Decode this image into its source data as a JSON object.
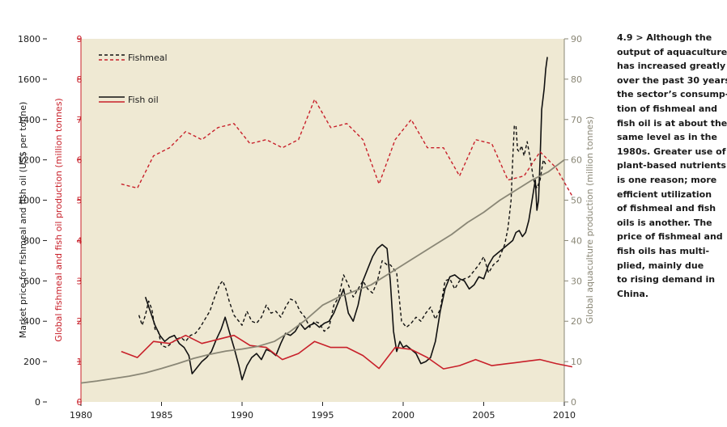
{
  "colors": {
    "plot_background": "#efe9d3",
    "fishmeal": "#111111",
    "fish_oil": "#111111",
    "production": "#c8202a",
    "aquaculture": "#8a8776",
    "left_axis_text": "#1a1a1a",
    "middle_axis_text": "#c8202a",
    "right_axis_text": "#8a8776"
  },
  "caption_lines": [
    "4.9 > Although the",
    "output of aquaculture",
    "has increased greatly",
    "over the past 30 years,",
    "the sector’s consump-",
    "tion of fishmeal and",
    "fish oil is at about the",
    "same level as in the",
    "1980s. Greater use of",
    "plant-based nutrients",
    "is one reason; more",
    "efficient utilization",
    "of fishmeal and fish",
    "oils is another. The",
    "price of fishmeal and",
    "fish oils has multi-",
    "plied, mainly due",
    "to rising demand in",
    "China."
  ],
  "chart_data": {
    "type": "line",
    "title": "",
    "xlabel": "",
    "xlim": [
      1980,
      2010
    ],
    "x_ticks": [
      1980,
      1985,
      1990,
      1995,
      2000,
      2005,
      2010
    ],
    "x_tick_labels": [
      "1980",
      "1985",
      "1990",
      "1995",
      "2000",
      "2005",
      "2010"
    ],
    "y_axes": {
      "price": {
        "label": "Market price for fishmeal and fish oil (US$ per tonne)",
        "range": [
          0,
          1800
        ],
        "ticks": [
          0,
          200,
          400,
          600,
          800,
          1000,
          1200,
          1400,
          1600,
          1800
        ],
        "tick_labels": [
          "0",
          "200",
          "400",
          "600",
          "800",
          "1000",
          "1200",
          "1400",
          "1600",
          "1800"
        ]
      },
      "production": {
        "label": "Global fishmeal and fish oil production (million tonnes)",
        "range": [
          0,
          9
        ],
        "ticks": [
          0,
          1,
          2,
          3,
          4,
          5,
          6,
          7,
          8,
          9
        ],
        "tick_labels": [
          "0",
          "1",
          "2",
          "3",
          "4",
          "5",
          "6",
          "7",
          "8",
          "9"
        ]
      },
      "aquaculture": {
        "label": "Global aquaculture production (million tonnes)",
        "range": [
          0,
          90
        ],
        "ticks": [
          0,
          10,
          20,
          30,
          40,
          50,
          60,
          70,
          80,
          90
        ],
        "tick_labels": [
          "0",
          "10",
          "20",
          "30",
          "40",
          "50",
          "60",
          "70",
          "80",
          "90"
        ]
      }
    },
    "legend": {
      "position": "top-left",
      "entries": [
        {
          "label": "Fishmeal",
          "style": "dashed black",
          "series": [
            "fishmeal_price",
            "fishmeal_production"
          ]
        },
        {
          "label": "Fish oil",
          "style": "solid black",
          "series": [
            "fish_oil_price",
            "fish_oil_production"
          ]
        }
      ]
    },
    "series": [
      {
        "name": "Fishmeal price",
        "key": "fishmeal_price",
        "axis": "price",
        "style": "dashed",
        "color": "#111111",
        "x": [
          1983.6,
          1983.8,
          1984.0,
          1984.2,
          1984.4,
          1984.6,
          1984.8,
          1985.0,
          1985.3,
          1985.6,
          1985.9,
          1986.2,
          1986.5,
          1986.8,
          1987.1,
          1987.4,
          1987.7,
          1988.0,
          1988.3,
          1988.6,
          1988.8,
          1989.0,
          1989.2,
          1989.5,
          1989.8,
          1990.0,
          1990.3,
          1990.6,
          1990.9,
          1991.2,
          1991.5,
          1991.8,
          1992.1,
          1992.4,
          1992.7,
          1993.0,
          1993.3,
          1993.6,
          1993.9,
          1994.2,
          1994.5,
          1994.8,
          1995.1,
          1995.4,
          1995.7,
          1996.0,
          1996.3,
          1996.6,
          1996.9,
          1997.2,
          1997.5,
          1997.8,
          1998.1,
          1998.4,
          1998.7,
          1999.0,
          1999.2,
          1999.4,
          1999.6,
          1999.9,
          2000.2,
          2000.5,
          2000.8,
          2001.1,
          2001.4,
          2001.7,
          2002.0,
          2002.3,
          2002.6,
          2002.9,
          2003.2,
          2003.5,
          2003.8,
          2004.1,
          2004.4,
          2004.7,
          2005.0,
          2005.3,
          2005.6,
          2005.9,
          2006.1,
          2006.3,
          2006.5,
          2006.7,
          2006.8,
          2006.9,
          2007.0,
          2007.1,
          2007.2,
          2007.35,
          2007.5,
          2007.7,
          2007.9,
          2008.1,
          2008.3,
          2008.5,
          2008.7,
          2008.9
        ],
        "values": [
          430,
          380,
          430,
          500,
          460,
          360,
          350,
          280,
          270,
          290,
          310,
          320,
          300,
          330,
          340,
          370,
          410,
          450,
          520,
          580,
          600,
          560,
          500,
          430,
          400,
          380,
          450,
          400,
          390,
          420,
          480,
          440,
          450,
          420,
          470,
          510,
          500,
          450,
          420,
          370,
          400,
          390,
          350,
          370,
          480,
          520,
          630,
          580,
          520,
          560,
          600,
          560,
          540,
          600,
          700,
          680,
          680,
          660,
          640,
          400,
          370,
          390,
          420,
          400,
          440,
          470,
          410,
          460,
          600,
          610,
          560,
          600,
          610,
          620,
          650,
          680,
          720,
          640,
          680,
          700,
          740,
          780,
          860,
          1000,
          1200,
          1370,
          1370,
          1250,
          1240,
          1270,
          1220,
          1290,
          1200,
          1100,
          1060,
          1100,
          1200,
          1170
        ]
      },
      {
        "name": "Fish oil price",
        "key": "fish_oil_price",
        "axis": "price",
        "style": "solid",
        "color": "#111111",
        "x": [
          1984.0,
          1984.3,
          1984.6,
          1984.9,
          1985.2,
          1985.5,
          1985.8,
          1986.1,
          1986.4,
          1986.7,
          1986.9,
          1987.2,
          1987.5,
          1987.8,
          1988.1,
          1988.4,
          1988.7,
          1988.95,
          1989.2,
          1989.5,
          1989.8,
          1990.0,
          1990.3,
          1990.6,
          1990.9,
          1991.2,
          1991.5,
          1991.8,
          1992.1,
          1992.4,
          1992.7,
          1993.0,
          1993.3,
          1993.6,
          1993.9,
          1994.2,
          1994.5,
          1994.8,
          1995.1,
          1995.4,
          1995.7,
          1996.0,
          1996.3,
          1996.6,
          1996.9,
          1997.2,
          1997.5,
          1997.8,
          1998.1,
          1998.4,
          1998.7,
          1999.0,
          1999.2,
          1999.4,
          1999.6,
          1999.8,
          2000.0,
          2000.2,
          2000.5,
          2000.8,
          2001.1,
          2001.4,
          2001.7,
          2002.0,
          2002.3,
          2002.6,
          2002.9,
          2003.2,
          2003.5,
          2003.8,
          2004.1,
          2004.4,
          2004.7,
          2005.0,
          2005.3,
          2005.6,
          2005.9,
          2006.2,
          2006.5,
          2006.8,
          2007.0,
          2007.2,
          2007.4,
          2007.6,
          2007.8,
          2008.0,
          2008.2,
          2008.3,
          2008.4,
          2008.5,
          2008.6,
          2008.75,
          2008.85,
          2008.95
        ],
        "values": [
          520,
          450,
          380,
          330,
          300,
          320,
          330,
          290,
          270,
          230,
          140,
          170,
          200,
          220,
          250,
          310,
          360,
          420,
          350,
          270,
          180,
          110,
          180,
          220,
          240,
          210,
          260,
          250,
          230,
          290,
          340,
          330,
          350,
          390,
          360,
          380,
          390,
          370,
          390,
          400,
          440,
          500,
          560,
          440,
          400,
          480,
          600,
          660,
          720,
          760,
          780,
          760,
          600,
          350,
          250,
          300,
          270,
          280,
          260,
          240,
          190,
          200,
          220,
          300,
          450,
          560,
          620,
          630,
          610,
          600,
          560,
          580,
          620,
          610,
          680,
          720,
          740,
          760,
          780,
          800,
          840,
          850,
          820,
          840,
          900,
          1000,
          1100,
          950,
          1000,
          1200,
          1450,
          1550,
          1650,
          1710
        ]
      },
      {
        "name": "Fishmeal production",
        "key": "fishmeal_production",
        "axis": "production",
        "style": "dashed",
        "color": "#c8202a",
        "x": [
          1982.5,
          1983.5,
          1984.5,
          1985.5,
          1986.5,
          1987.5,
          1988.5,
          1989.5,
          1990.5,
          1991.5,
          1992.5,
          1993.5,
          1994.5,
          1995.5,
          1996.5,
          1997.5,
          1998.5,
          1999.5,
          2000.5,
          2001.5,
          2002.5,
          2003.5,
          2004.5,
          2005.5,
          2006.5,
          2007.5,
          2008.5,
          2009.5,
          2010.5
        ],
        "values": [
          5.4,
          5.3,
          6.1,
          6.3,
          6.7,
          6.5,
          6.8,
          6.9,
          6.4,
          6.5,
          6.3,
          6.5,
          7.5,
          6.8,
          6.9,
          6.5,
          5.4,
          6.5,
          7.0,
          6.3,
          6.3,
          5.6,
          6.5,
          6.4,
          5.5,
          5.6,
          6.2,
          5.8,
          5.1
        ]
      },
      {
        "name": "Fish oil production",
        "key": "fish_oil_production",
        "axis": "production",
        "style": "solid",
        "color": "#c8202a",
        "x": [
          1982.5,
          1983.5,
          1984.5,
          1985.5,
          1986.5,
          1987.5,
          1988.5,
          1989.5,
          1990.5,
          1991.5,
          1992.5,
          1993.5,
          1994.5,
          1995.5,
          1996.5,
          1997.5,
          1998.5,
          1999.5,
          2000.5,
          2001.5,
          2002.5,
          2003.5,
          2004.5,
          2005.5,
          2006.5,
          2007.5,
          2008.5,
          2009.5,
          2010.5
        ],
        "values": [
          1.25,
          1.1,
          1.5,
          1.45,
          1.65,
          1.45,
          1.55,
          1.65,
          1.4,
          1.35,
          1.05,
          1.2,
          1.5,
          1.35,
          1.35,
          1.15,
          0.83,
          1.35,
          1.3,
          1.1,
          0.82,
          0.9,
          1.05,
          0.9,
          0.95,
          1.0,
          1.05,
          0.95,
          0.87
        ]
      },
      {
        "name": "Global aquaculture production",
        "key": "aquaculture_production",
        "axis": "aquaculture",
        "style": "solid",
        "color": "#8a8776",
        "x": [
          1980,
          1981,
          1982,
          1983,
          1984,
          1985,
          1986,
          1987,
          1988,
          1989,
          1990,
          1991,
          1992,
          1993,
          1994,
          1995,
          1996,
          1997,
          1998,
          1999,
          2000,
          2001,
          2002,
          2003,
          2004,
          2005,
          2006,
          2007,
          2008,
          2009,
          2010
        ],
        "values": [
          4.7,
          5.2,
          5.8,
          6.4,
          7.2,
          8.3,
          9.5,
          10.8,
          11.8,
          12.6,
          13.1,
          13.8,
          15.0,
          17.5,
          20.5,
          24.0,
          26.0,
          27.5,
          29.0,
          31.5,
          34.0,
          36.5,
          39.0,
          41.5,
          44.5,
          47.0,
          50.0,
          52.5,
          55.0,
          57.0,
          60.0
        ]
      }
    ]
  }
}
